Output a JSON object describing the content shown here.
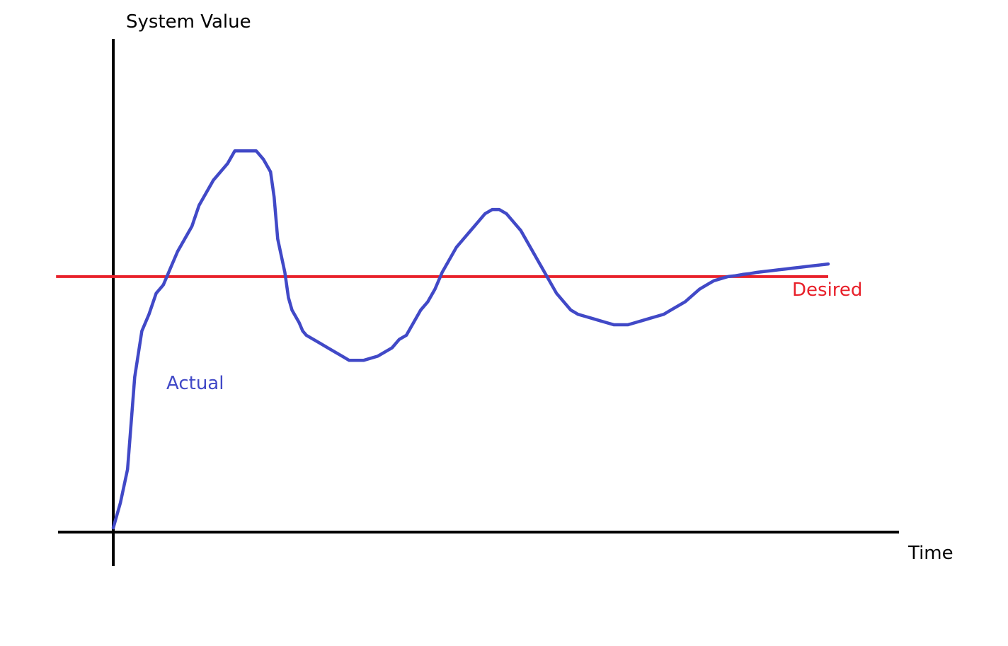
{
  "chart_data": {
    "type": "line",
    "xlabel": "Time",
    "ylabel": "System Value",
    "xlim": [
      0,
      100
    ],
    "ylim": [
      0,
      100
    ],
    "grid": false,
    "ticks": "none",
    "colors": {
      "axes": "#000000",
      "actual": "#4149C7",
      "desired": "#E8202A"
    },
    "series": [
      {
        "name": "Actual",
        "x": [
          0,
          1,
          2,
          2.5,
          3,
          4,
          5,
          6,
          7,
          8,
          9,
          10,
          11,
          12,
          13,
          14,
          15,
          16,
          17,
          18,
          19,
          20,
          21,
          22,
          22.5,
          23,
          24,
          24.5,
          25,
          26,
          26.5,
          27,
          28,
          29,
          30,
          31,
          32,
          33,
          34,
          35,
          36,
          37,
          38,
          39,
          40,
          41,
          42,
          43,
          44,
          45,
          46,
          47,
          48,
          49,
          50,
          51,
          52,
          53,
          54,
          55,
          56,
          57,
          58,
          59,
          60,
          61,
          62,
          63,
          64,
          65,
          66,
          67,
          68,
          69,
          70,
          71,
          72,
          73,
          74,
          75,
          76,
          77,
          78,
          79,
          80,
          81,
          82,
          83,
          84,
          85,
          86,
          87,
          88,
          89,
          90,
          91,
          92,
          93,
          94,
          95,
          96,
          97,
          98,
          99,
          100
        ],
        "y": [
          1,
          7,
          15,
          26,
          37,
          48,
          52,
          57,
          59,
          63,
          67,
          70,
          73,
          78,
          81,
          84,
          86,
          88,
          91,
          91,
          91,
          91,
          89,
          86,
          80,
          70,
          62,
          56,
          53,
          50,
          48,
          47,
          46,
          45,
          44,
          43,
          42,
          41,
          41,
          41,
          41.5,
          42,
          43,
          44,
          46,
          47,
          50,
          53,
          55,
          58,
          62,
          65,
          68,
          70,
          72,
          74,
          76,
          77,
          77,
          76,
          74,
          72,
          69,
          66,
          63,
          60,
          57,
          55,
          53,
          52,
          51.5,
          51,
          50.5,
          50,
          49.5,
          49.5,
          49.5,
          50,
          50.5,
          51,
          51.5,
          52,
          53,
          54,
          55,
          56.5,
          58,
          59,
          60,
          60.5,
          61,
          61.2,
          61.5,
          61.7,
          62,
          62.2,
          62.4,
          62.6,
          62.8,
          63,
          63.2,
          63.4,
          63.6,
          63.8,
          64
        ]
      },
      {
        "name": "Desired",
        "x": [
          -8,
          100
        ],
        "y": [
          61,
          61
        ]
      }
    ]
  }
}
